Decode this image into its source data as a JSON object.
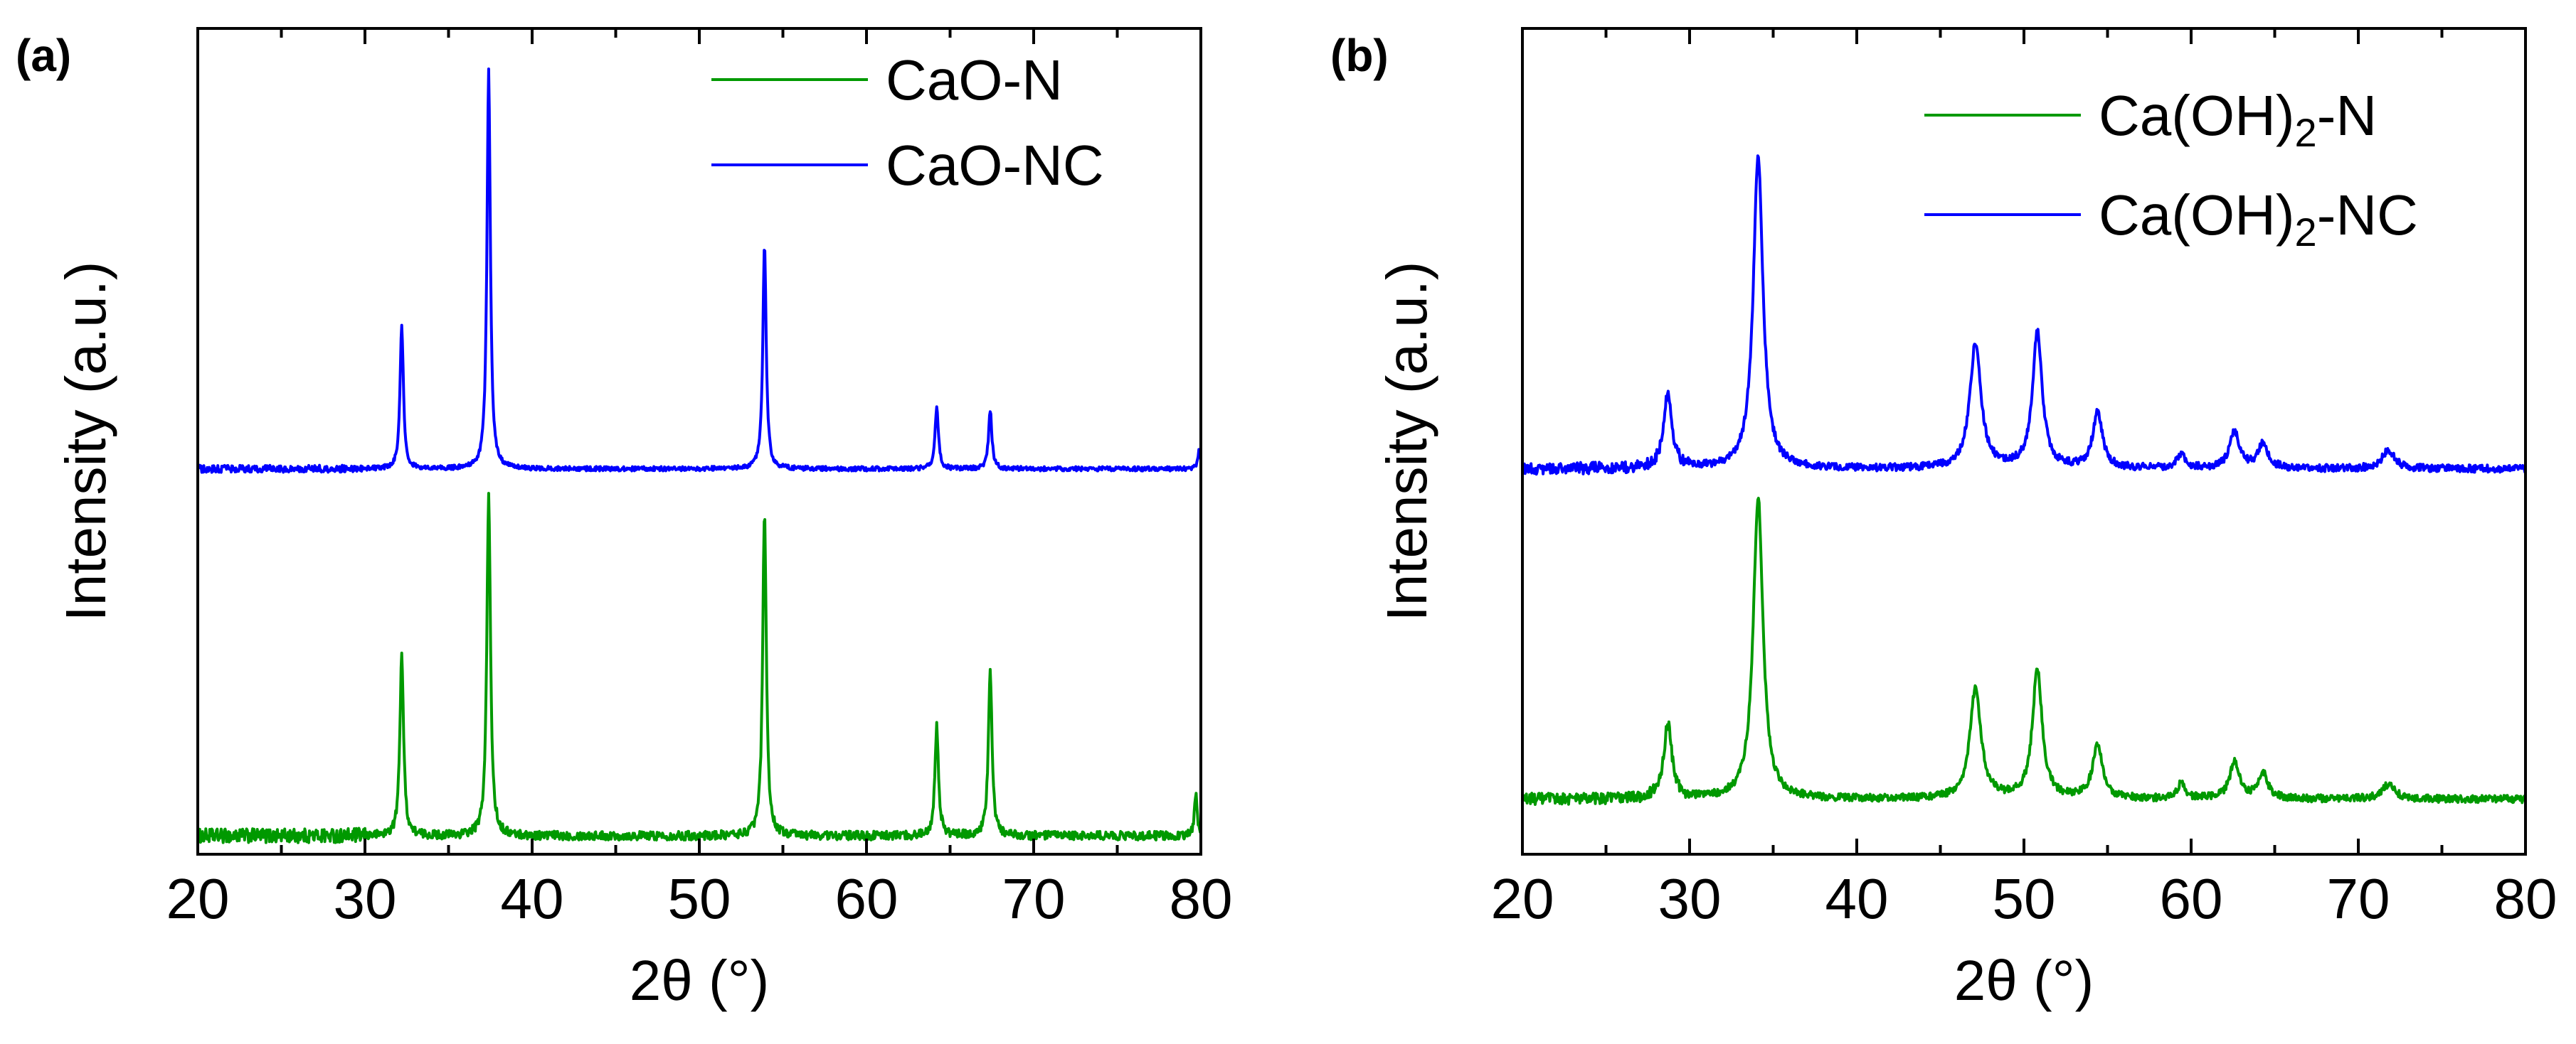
{
  "chart_data": [
    {
      "type": "line",
      "panel_label": "(a)",
      "xlabel": "2θ (°)",
      "ylabel": "Intensity (a.u.)",
      "xlim": [
        20,
        80
      ],
      "x_ticks": [
        "20",
        "30",
        "40",
        "50",
        "60",
        "70",
        "80"
      ],
      "y_ticks": "none",
      "legend_position": "top-right",
      "series": [
        {
          "name": "CaO-N",
          "color": "#009900",
          "baseline": 0.05,
          "noise": 0.012,
          "peaks": [
            {
              "x": 32.2,
              "h": 0.5,
              "w": 0.13
            },
            {
              "x": 37.4,
              "h": 0.93,
              "w": 0.13
            },
            {
              "x": 53.9,
              "h": 0.88,
              "w": 0.13
            },
            {
              "x": 64.2,
              "h": 0.3,
              "w": 0.13
            },
            {
              "x": 67.4,
              "h": 0.45,
              "w": 0.13
            },
            {
              "x": 79.7,
              "h": 0.12,
              "w": 0.1
            }
          ]
        },
        {
          "name": "CaO-NC",
          "color": "#0000ff",
          "baseline": 1.05,
          "noise": 0.006,
          "peaks": [
            {
              "x": 32.2,
              "h": 0.39,
              "w": 0.12
            },
            {
              "x": 37.4,
              "h": 1.09,
              "w": 0.12
            },
            {
              "x": 53.9,
              "h": 0.61,
              "w": 0.12
            },
            {
              "x": 64.2,
              "h": 0.17,
              "w": 0.12
            },
            {
              "x": 67.4,
              "h": 0.16,
              "w": 0.12
            },
            {
              "x": 79.9,
              "h": 0.05,
              "w": 0.1
            }
          ]
        }
      ]
    },
    {
      "type": "line",
      "panel_label": "(b)",
      "xlabel": "2θ (°)",
      "ylabel": "Intensity (a.u.)",
      "xlim": [
        20,
        80
      ],
      "x_ticks": [
        "20",
        "30",
        "40",
        "50",
        "60",
        "70",
        "80"
      ],
      "y_ticks": "none",
      "legend_position": "top-right",
      "series": [
        {
          "name": "Ca(OH)2-N",
          "legend_base": "Ca(OH)",
          "legend_sub": "2",
          "legend_suffix": "-N",
          "color": "#009900",
          "baseline": 0.15,
          "noise": 0.01,
          "peaks": [
            {
              "x": 28.7,
              "h": 0.2,
              "w": 0.3
            },
            {
              "x": 34.1,
              "h": 0.82,
              "w": 0.35
            },
            {
              "x": 47.1,
              "h": 0.3,
              "w": 0.4
            },
            {
              "x": 50.8,
              "h": 0.35,
              "w": 0.35
            },
            {
              "x": 54.4,
              "h": 0.15,
              "w": 0.35
            },
            {
              "x": 59.4,
              "h": 0.04,
              "w": 0.3
            },
            {
              "x": 62.6,
              "h": 0.1,
              "w": 0.35
            },
            {
              "x": 64.3,
              "h": 0.07,
              "w": 0.35
            },
            {
              "x": 71.8,
              "h": 0.04,
              "w": 0.45
            }
          ]
        },
        {
          "name": "Ca(OH)2-NC",
          "legend_base": "Ca(OH)",
          "legend_sub": "2",
          "legend_suffix": "-NC",
          "color": "#0000ff",
          "baseline": 1.05,
          "noise": 0.01,
          "peaks": [
            {
              "x": 28.7,
              "h": 0.2,
              "w": 0.3
            },
            {
              "x": 34.1,
              "h": 0.85,
              "w": 0.35
            },
            {
              "x": 47.1,
              "h": 0.34,
              "w": 0.4
            },
            {
              "x": 50.8,
              "h": 0.37,
              "w": 0.35
            },
            {
              "x": 54.4,
              "h": 0.15,
              "w": 0.35
            },
            {
              "x": 59.4,
              "h": 0.04,
              "w": 0.3
            },
            {
              "x": 62.6,
              "h": 0.1,
              "w": 0.35
            },
            {
              "x": 64.3,
              "h": 0.07,
              "w": 0.35
            },
            {
              "x": 71.8,
              "h": 0.05,
              "w": 0.45
            }
          ]
        }
      ]
    }
  ]
}
